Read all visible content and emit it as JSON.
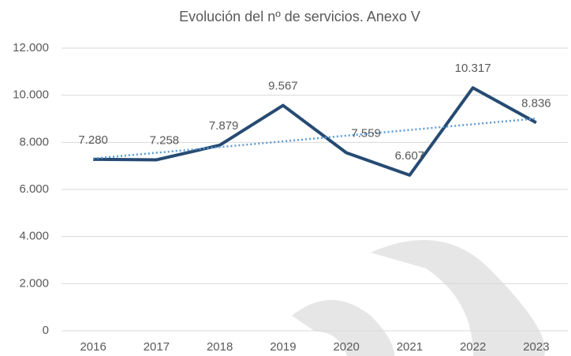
{
  "chart_data": {
    "type": "line",
    "title": "Evolución del nº de servicios. Anexo V",
    "categories": [
      "2016",
      "2017",
      "2018",
      "2019",
      "2020",
      "2021",
      "2022",
      "2023"
    ],
    "series": [
      {
        "name": "Anexo V",
        "color": "#264b73",
        "values": [
          7280,
          7258,
          7879,
          9567,
          7559,
          6607,
          10317,
          8836
        ],
        "value_labels": [
          "7.280",
          "7.258",
          "7.879",
          "9.567",
          "7.559",
          "6.607",
          "10.317",
          "8.836"
        ]
      }
    ],
    "ylim": [
      0,
      12000
    ],
    "yticks": [
      0,
      {
        "value": 2000,
        "label": "2.000"
      },
      {
        "value": 4000,
        "label": "4.000"
      },
      {
        "value": 6000,
        "label": "6.000"
      },
      {
        "value": 8000,
        "label": "8.000"
      },
      {
        "value": 10000,
        "label": "10.000"
      },
      {
        "value": 12000,
        "label": "12.000"
      }
    ],
    "grid": true,
    "trendline": "linear",
    "trendline_color": "#5b9bd5"
  }
}
